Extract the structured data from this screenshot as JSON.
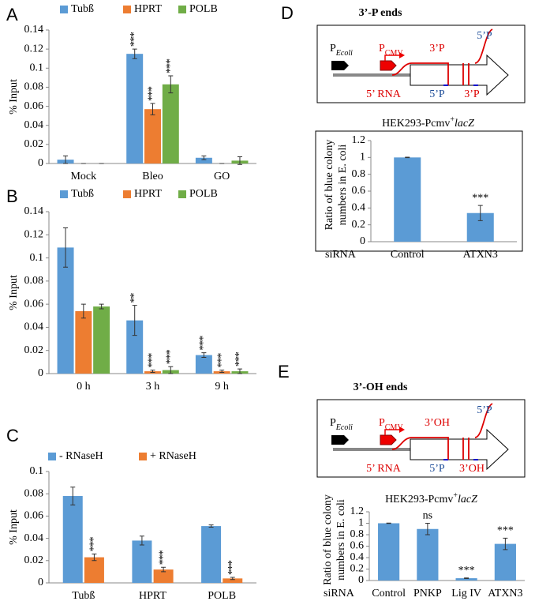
{
  "panel_labels": [
    "A",
    "B",
    "C",
    "D",
    "E"
  ],
  "chart_data": [
    {
      "type": "bar",
      "y_label": "% Input",
      "categories": [
        "Mock",
        "Bleo",
        "GO"
      ],
      "ylim": [
        0,
        0.14
      ],
      "yticks": [
        0,
        0.02,
        0.04,
        0.06,
        0.08,
        0.1,
        0.12,
        0.14
      ],
      "grid": false,
      "legend": "top",
      "series": [
        {
          "name": "Tubß",
          "color": "#5b9bd5",
          "values": [
            0.004,
            0.115,
            0.006
          ],
          "errors": [
            0.004,
            0.005,
            0.002
          ],
          "significance": [
            null,
            "***",
            null
          ]
        },
        {
          "name": "HPRT",
          "color": "#ed7d31",
          "values": [
            0,
            0.057,
            0
          ],
          "errors": [
            0,
            0.006,
            0
          ],
          "significance": [
            null,
            "***",
            null
          ]
        },
        {
          "name": "POLB",
          "color": "#70ad47",
          "values": [
            0,
            0.083,
            0.003
          ],
          "errors": [
            0,
            0.009,
            0.004
          ],
          "significance": [
            null,
            "***",
            null
          ]
        }
      ]
    },
    {
      "type": "bar",
      "y_label": "% Input",
      "categories": [
        "0 h",
        "3 h",
        "9 h"
      ],
      "ylim": [
        0,
        0.14
      ],
      "yticks": [
        0,
        0.02,
        0.04,
        0.06,
        0.08,
        0.1,
        0.12,
        0.14
      ],
      "grid": false,
      "legend": "top",
      "series": [
        {
          "name": "Tubß",
          "color": "#5b9bd5",
          "values": [
            0.109,
            0.046,
            0.016
          ],
          "errors": [
            0.017,
            0.013,
            0.002
          ],
          "significance": [
            null,
            "**",
            "***"
          ]
        },
        {
          "name": "HPRT",
          "color": "#ed7d31",
          "values": [
            0.054,
            0.002,
            0.002
          ],
          "errors": [
            0.006,
            0.001,
            0.001
          ],
          "significance": [
            null,
            "***",
            "***"
          ]
        },
        {
          "name": "POLB",
          "color": "#70ad47",
          "values": [
            0.058,
            0.003,
            0.002
          ],
          "errors": [
            0.002,
            0.003,
            0.002
          ],
          "significance": [
            null,
            "***",
            "***"
          ]
        }
      ]
    },
    {
      "type": "bar",
      "y_label": "% Input",
      "categories": [
        "Tubß",
        "HPRT",
        "POLB"
      ],
      "ylim": [
        0,
        0.1
      ],
      "yticks": [
        0,
        0.02,
        0.04,
        0.06,
        0.08,
        0.1
      ],
      "grid": false,
      "legend": "top",
      "series": [
        {
          "name": "- RNaseH",
          "color": "#5b9bd5",
          "values": [
            0.078,
            0.038,
            0.051
          ],
          "errors": [
            0.008,
            0.004,
            0.001
          ],
          "significance": [
            null,
            null,
            null
          ]
        },
        {
          "name": "+ RNaseH",
          "color": "#ed7d31",
          "values": [
            0.023,
            0.012,
            0.004
          ],
          "errors": [
            0.003,
            0.002,
            0.001
          ],
          "significance": [
            "***",
            "***",
            "***"
          ]
        }
      ]
    },
    {
      "type": "bar",
      "title_parts": [
        "HEK293-Pcmv",
        "+",
        "lacZ"
      ],
      "y_label_lines": [
        "Ratio of blue colony",
        "numbers in E. coli"
      ],
      "x_label": "siRNA",
      "categories": [
        "Control",
        "ATXN3"
      ],
      "ylim": [
        0,
        1.2
      ],
      "yticks": [
        0,
        0.2,
        0.4,
        0.6,
        0.8,
        1,
        1.2
      ],
      "grid": false,
      "series": [
        {
          "color": "#5b9bd5",
          "values": [
            1.0,
            0.34
          ],
          "errors": [
            0.003,
            0.09
          ],
          "significance": [
            null,
            "***"
          ]
        }
      ]
    },
    {
      "type": "bar",
      "title_parts": [
        "HEK293-Pcmv",
        "+",
        "lacZ"
      ],
      "y_label_lines": [
        "Ratio of blue colony",
        "numbers in E. coli"
      ],
      "x_label": "siRNA",
      "categories": [
        "Control",
        "PNKP",
        "Lig IV",
        "ATXN3"
      ],
      "ylim": [
        0,
        1.2
      ],
      "yticks": [
        0,
        0.2,
        0.4,
        0.6,
        0.8,
        1,
        1.2
      ],
      "grid": false,
      "series": [
        {
          "color": "#5b9bd5",
          "values": [
            1.0,
            0.9,
            0.04,
            0.64
          ],
          "errors": [
            0.003,
            0.1,
            0.005,
            0.1
          ],
          "significance": [
            null,
            "ns",
            "***",
            "***"
          ]
        }
      ]
    }
  ],
  "diagrams": [
    {
      "title": "3’-P ends",
      "ecoli_promoter": {
        "main": "P",
        "sub": "Ecoli"
      },
      "cmv_promoter": {
        "main": "P",
        "sub": "CMV"
      },
      "labels": [
        "3’P",
        "5’P",
        "5’ RNA",
        "5’P",
        "3’P"
      ]
    },
    {
      "title": "3’-OH ends",
      "ecoli_promoter": {
        "main": "P",
        "sub": "Ecoli"
      },
      "cmv_promoter": {
        "main": "P",
        "sub": "CMV"
      },
      "labels": [
        "3’OH",
        "5’P",
        "5’ RNA",
        "5’P",
        "3’OH"
      ]
    }
  ]
}
